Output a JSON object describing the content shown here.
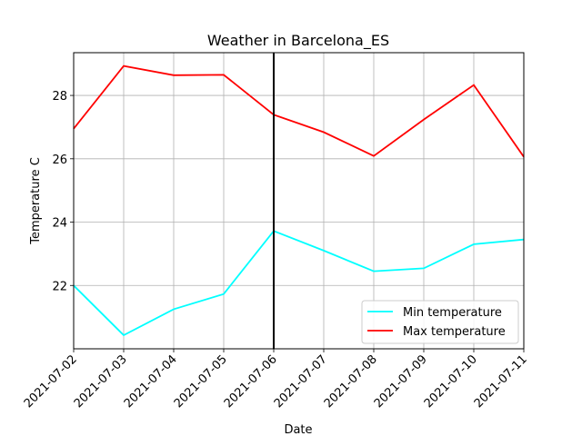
{
  "chart_data": {
    "type": "line",
    "title": "Weather in Barcelona_ES",
    "xlabel": "Date",
    "ylabel": "Temperature C",
    "x": [
      "2021-07-02",
      "2021-07-03",
      "2021-07-04",
      "2021-07-05",
      "2021-07-06",
      "2021-07-07",
      "2021-07-08",
      "2021-07-09",
      "2021-07-10",
      "2021-07-11"
    ],
    "ylim": [
      20.0,
      29.35
    ],
    "yticks": [
      22,
      24,
      26,
      28
    ],
    "grid": true,
    "legend_position": "lower-right",
    "vline_x": "2021-07-06",
    "series": [
      {
        "name": "Min temperature",
        "color": "#00ffff",
        "values": [
          22.0,
          20.43,
          21.25,
          21.73,
          23.72,
          23.1,
          22.45,
          22.54,
          23.3,
          23.45
        ]
      },
      {
        "name": "Max temperature",
        "color": "#ff0000",
        "values": [
          26.95,
          28.93,
          28.64,
          28.65,
          27.39,
          26.84,
          26.09,
          27.24,
          28.33,
          26.06
        ]
      }
    ]
  }
}
